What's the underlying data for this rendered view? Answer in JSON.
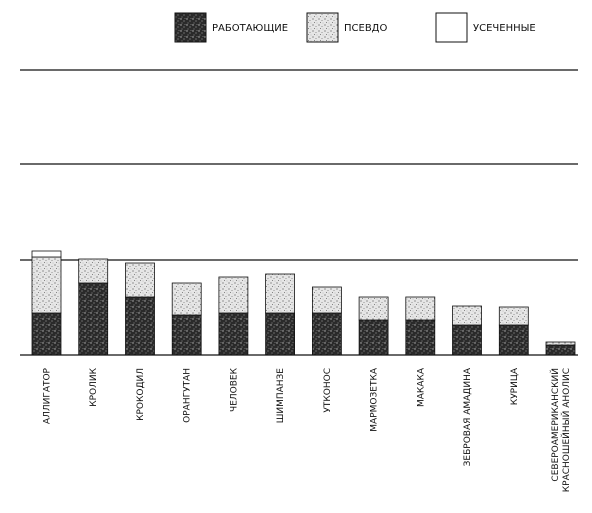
{
  "chart_data": {
    "type": "bar",
    "stacked": true,
    "legend_position": "top",
    "grid": true,
    "legend": [
      {
        "key": "functional",
        "label": "РАБОТАЮЩИЕ",
        "pattern": "dense-dark"
      },
      {
        "key": "pseudo",
        "label": "ПСЕВДО",
        "pattern": "light-stipple"
      },
      {
        "key": "truncated",
        "label": "УСЕЧЕННЫЕ",
        "pattern": "white"
      }
    ],
    "categories": [
      "АЛЛИГАТОР",
      "КРОЛИК",
      "КРОКОДИЛ",
      "ОРАНГУТАН",
      "ЧЕЛОВЕК",
      "ШИМПАНЗЕ",
      "УТКОНОС",
      "МАРМОЗЕТКА",
      "МАКАКА",
      "ЗЕБРОВАЯ АМАДИНА",
      "КУРИЦА",
      "СЕВЕРОАМЕРИКАНСКИЙ КРАСНОШЕЙНЫЙ АНОЛИС"
    ],
    "series": [
      {
        "key": "functional",
        "name": "РАБОТАЮЩИЕ",
        "values": [
          42,
          72,
          58,
          40,
          42,
          42,
          42,
          35,
          35,
          30,
          30,
          10
        ]
      },
      {
        "key": "pseudo",
        "name": "ПСЕВДО",
        "values": [
          56,
          24,
          34,
          32,
          36,
          39,
          26,
          23,
          23,
          19,
          18,
          3
        ]
      },
      {
        "key": "truncated",
        "name": "УСЕЧЕННЫЕ",
        "values": [
          6,
          0,
          0,
          0,
          0,
          0,
          0,
          0,
          0,
          0,
          0,
          0
        ]
      }
    ],
    "ylim": [
      0,
      305
    ]
  }
}
